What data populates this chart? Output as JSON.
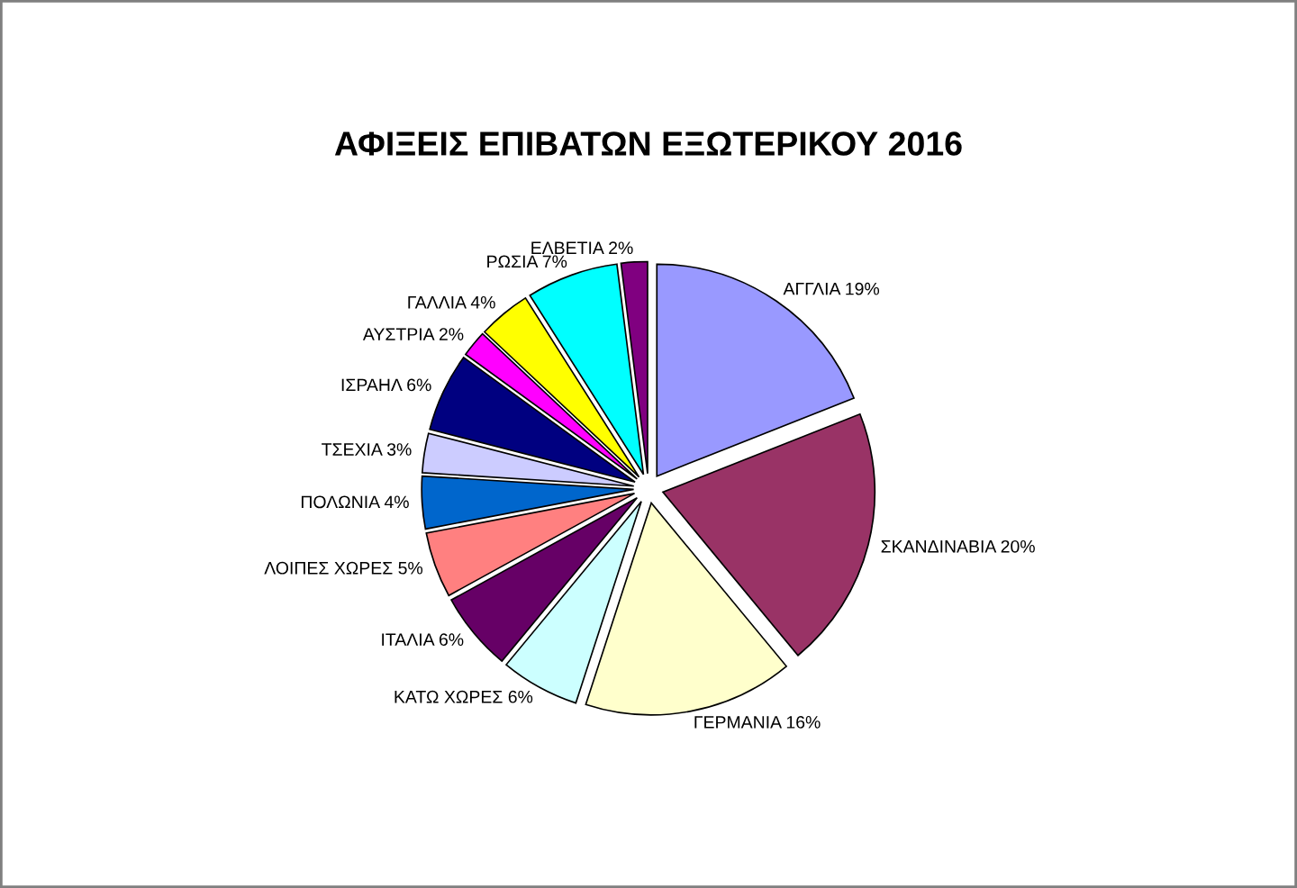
{
  "chart_data": {
    "type": "pie",
    "title": "ΑΦΙΞΕΙΣ ΕΠΙΒΑΤΩΝ ΕΞΩΤΕΡΙΚΟΥ 2016",
    "categories": [
      "ΑΓΓΛΙΑ",
      "ΣΚΑΝΔΙΝΑΒΙΑ",
      "ΓΕΡΜΑΝΙΑ",
      "ΚΑΤΩ ΧΩΡΕΣ",
      "ΙΤΑΛΙΑ",
      "ΛΟΙΠΕΣ ΧΩΡΕΣ",
      "ΠΟΛΩΝΙΑ",
      "ΤΣΕΧΙΑ",
      "ΙΣΡΑΗΛ",
      "ΑΥΣΤΡΙΑ",
      "ΓΑΛΛΙΑ",
      "ΡΩΣΙΑ",
      "ΕΛΒΕΤΙΑ"
    ],
    "values": [
      19,
      20,
      16,
      6,
      6,
      5,
      4,
      3,
      6,
      2,
      4,
      7,
      2
    ],
    "value_labels": [
      "19%",
      "20%",
      "16%",
      "6%",
      "6%",
      "5%",
      "4%",
      "3%",
      "6%",
      "2%",
      "4%",
      "7%",
      "2%"
    ],
    "colors": [
      "#9999ff",
      "#993366",
      "#ffffcc",
      "#ccffff",
      "#660066",
      "#ff8080",
      "#0066cc",
      "#ccccff",
      "#000080",
      "#ff00ff",
      "#ffff00",
      "#00ffff",
      "#800080"
    ]
  }
}
